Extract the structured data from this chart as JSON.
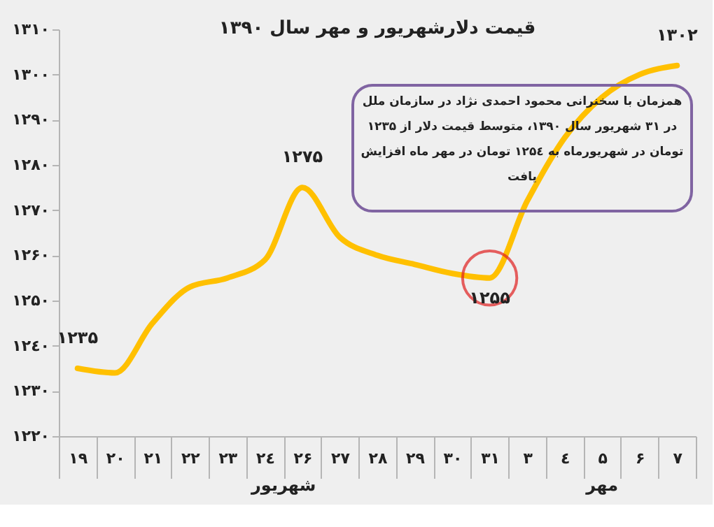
{
  "chart_data": {
    "type": "line",
    "title": "قیمت دلارشهریور و مهر سال ۱۳۹۰",
    "categories": [
      "۱۹",
      "۲۰",
      "۲۱",
      "۲۲",
      "۲۳",
      "۲٤",
      "۲۶",
      "۲۷",
      "۲۸",
      "۲۹",
      "۳۰",
      "۳۱",
      "۳",
      "٤",
      "۵",
      "۶",
      "۷"
    ],
    "series": [
      {
        "color": "#ffc000",
        "values": [
          1235,
          1234,
          1245,
          1253,
          1255,
          1259,
          1275,
          1264,
          1260,
          1258,
          1256,
          1255,
          1272,
          1286,
          1295,
          1300,
          1302
        ],
        "value_labels": [
          "۱۲۳۵",
          null,
          null,
          null,
          null,
          null,
          "۱۲۷۵",
          null,
          null,
          null,
          null,
          null,
          null,
          null,
          null,
          null,
          "۱۳۰۲"
        ]
      }
    ],
    "ylim": [
      1220,
      1310
    ],
    "yticks": [
      {
        "value": 1220,
        "label": "۱۲۲۰"
      },
      {
        "value": 1230,
        "label": "۱۲۳۰"
      },
      {
        "value": 1240,
        "label": "۱۲٤۰"
      },
      {
        "value": 1250,
        "label": "۱۲۵۰"
      },
      {
        "value": 1260,
        "label": "۱۲۶۰"
      },
      {
        "value": 1270,
        "label": "۱۲۷۰"
      },
      {
        "value": 1280,
        "label": "۱۲۸۰"
      },
      {
        "value": 1290,
        "label": "۱۲۹۰"
      },
      {
        "value": 1300,
        "label": "۱۳۰۰"
      },
      {
        "value": 1310,
        "label": "۱۳۱۰"
      }
    ],
    "grid": false,
    "marker": "none",
    "line_style": "solid",
    "annotations": [
      {
        "text": "۱۲۵۵",
        "x": "۳۱",
        "y": 1255
      },
      "شهریور",
      "مهر",
      "همزمان با سخنرانی محمود احمدی نژاد در سازمان ملل\nدر ۳۱ شهریور سال ۱۳۹۰، متوسط قیمت دلار از ۱۲۳۵\nتومان در شهریورماه به ۱۲۵٤ تومان در مهر ماه افزایش\nیافت"
    ]
  }
}
